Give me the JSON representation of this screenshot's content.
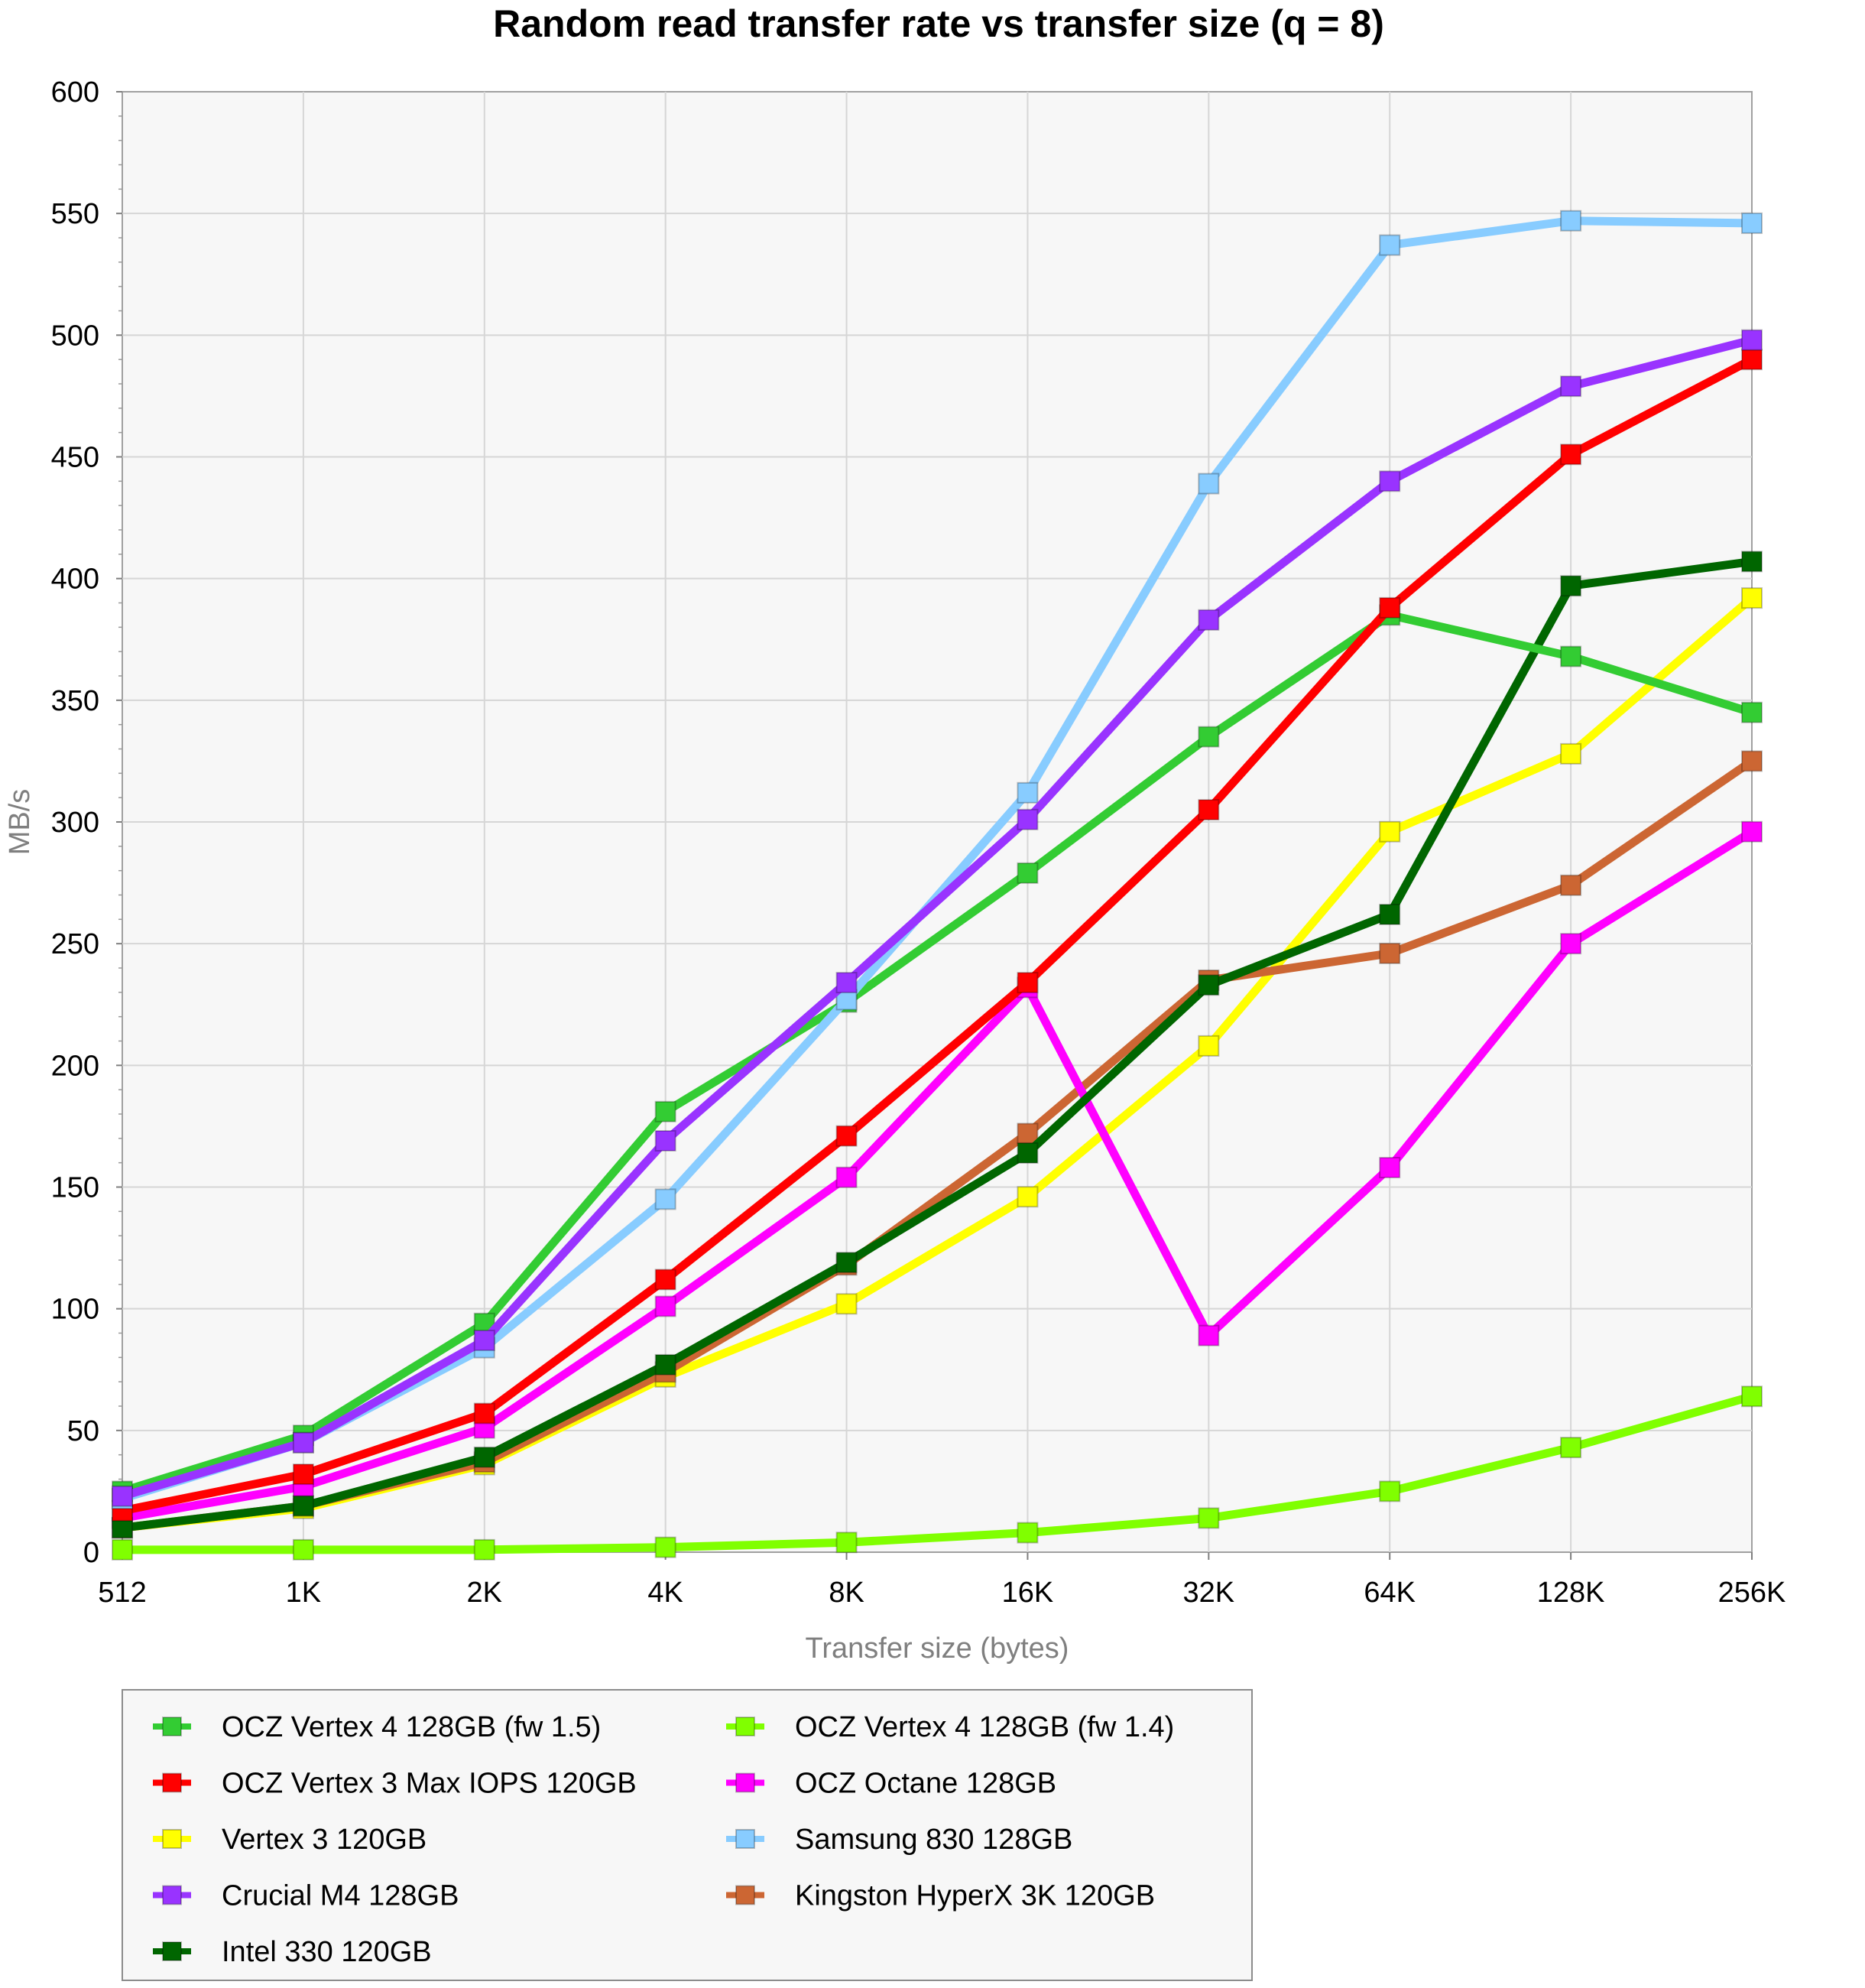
{
  "chart_data": {
    "type": "line",
    "title": "Random read transfer rate vs transfer size (q = 8)",
    "xlabel": "Transfer size (bytes)",
    "ylabel": "MB/s",
    "ylim": [
      0,
      600
    ],
    "yticks": [
      0,
      50,
      100,
      150,
      200,
      250,
      300,
      350,
      400,
      450,
      500,
      550,
      600
    ],
    "grid": true,
    "legend_position": "bottom",
    "categories": [
      "512",
      "1K",
      "2K",
      "4K",
      "8K",
      "16K",
      "32K",
      "64K",
      "128K",
      "256K"
    ],
    "series": [
      {
        "name": "OCZ Vertex 4 128GB (fw 1.5)",
        "color": "#33cc33",
        "values": [
          25,
          48,
          94,
          181,
          226,
          279,
          335,
          385,
          368,
          345
        ]
      },
      {
        "name": "OCZ Vertex 4 128GB (fw 1.4)",
        "color": "#80ff00",
        "values": [
          1,
          1,
          1,
          2,
          4,
          8,
          14,
          25,
          43,
          64
        ]
      },
      {
        "name": "OCZ Vertex 3 Max IOPS 120GB",
        "color": "#ff0000",
        "values": [
          17,
          32,
          57,
          112,
          171,
          234,
          305,
          388,
          451,
          490
        ]
      },
      {
        "name": "OCZ Octane 128GB",
        "color": "#ff00ff",
        "values": [
          14,
          27,
          51,
          101,
          154,
          232,
          89,
          158,
          250,
          296
        ]
      },
      {
        "name": "Vertex 3 120GB",
        "color": "#ffff00",
        "values": [
          10,
          18,
          36,
          72,
          102,
          146,
          208,
          296,
          328,
          392
        ]
      },
      {
        "name": "Samsung 830 128GB",
        "color": "#88ccff",
        "values": [
          22,
          45,
          84,
          145,
          227,
          312,
          439,
          537,
          547,
          546
        ]
      },
      {
        "name": "Crucial M4 128GB",
        "color": "#9933ff",
        "values": [
          23,
          45,
          87,
          169,
          234,
          301,
          383,
          440,
          479,
          498
        ]
      },
      {
        "name": "Kingston HyperX 3K 120GB",
        "color": "#cc6633",
        "values": [
          10,
          19,
          37,
          74,
          118,
          172,
          235,
          246,
          274,
          325
        ]
      },
      {
        "name": "Intel 330 120GB",
        "color": "#006600",
        "values": [
          10,
          19,
          39,
          77,
          119,
          164,
          233,
          262,
          397,
          407
        ]
      }
    ]
  }
}
